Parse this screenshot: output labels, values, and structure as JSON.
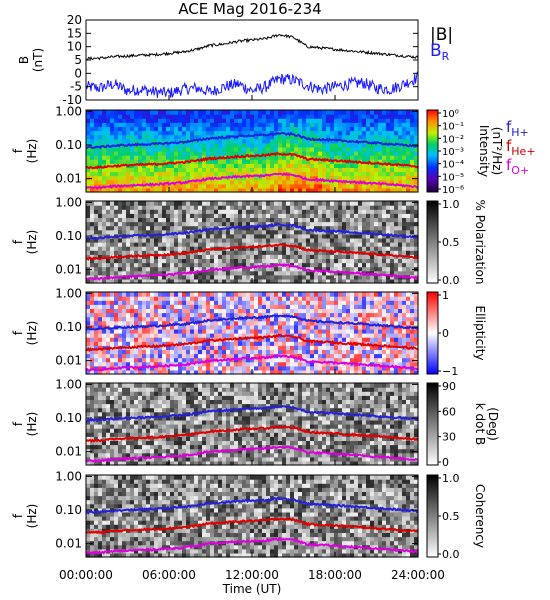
{
  "title": "ACE Mag 2016-234",
  "chart_data": [
    {
      "type": "line",
      "panel": "field",
      "ylabel": "B",
      "yunit": "(nT)",
      "ylim": [
        -10,
        20
      ],
      "yticks": [
        "-10",
        "-5",
        "0",
        "5",
        "10",
        "15",
        "20"
      ],
      "legend": {
        "b_total": "|B|",
        "b_radial_main": "B",
        "b_radial_sub": "R"
      },
      "colors": {
        "b_total": "#000000",
        "b_radial": "#1a1aff"
      },
      "x_hours": [
        0,
        1,
        2,
        3,
        4,
        5,
        6,
        7,
        8,
        9,
        10,
        11,
        12,
        13,
        14,
        15,
        16,
        17,
        18,
        19,
        20,
        21,
        22,
        23,
        24
      ],
      "series": [
        {
          "name": "|B|",
          "values": [
            5.5,
            5.7,
            6.2,
            6.5,
            6.8,
            7.0,
            7.5,
            8.0,
            9.0,
            10.5,
            11.0,
            12.0,
            12.5,
            13.0,
            14.5,
            13.5,
            10.0,
            9.5,
            9.0,
            8.5,
            8.0,
            7.5,
            7.0,
            6.5,
            6.0
          ]
        },
        {
          "name": "B_R",
          "values": [
            -5.0,
            -5.5,
            -4.0,
            -6.5,
            -6.0,
            -7.0,
            -7.5,
            -6.0,
            -5.5,
            -7.0,
            -5.0,
            -4.0,
            -6.5,
            -5.0,
            -2.0,
            -2.5,
            -4.5,
            -6.0,
            -5.0,
            -4.0,
            -3.5,
            -5.5,
            -6.0,
            -4.0,
            -1.5
          ]
        }
      ]
    },
    {
      "type": "heatmap",
      "panel": "power",
      "ylabel": "f",
      "yunit": "(Hz)",
      "cbar_label": "Intensity",
      "cbar_unit": "(nT²/Hz)",
      "cbar_ticks": [
        "10⁰",
        "10⁻¹",
        "10⁻²",
        "10⁻³",
        "10⁻⁴",
        "10⁻⁵",
        "10⁻⁶"
      ],
      "cbar_palette": "rainbow",
      "legend": [
        {
          "main": "f",
          "sub": "H+",
          "color": "#2222cc"
        },
        {
          "main": "f",
          "sub": "He+",
          "color": "#cc0000"
        },
        {
          "main": "f",
          "sub": "O+",
          "color": "#dd00dd"
        }
      ]
    },
    {
      "type": "heatmap",
      "panel": "polarization",
      "ylabel": "f",
      "yunit": "(Hz)",
      "cbar_label": "% Polarization",
      "cbar_ticks": [
        "1.0",
        "0.5",
        "0.0"
      ],
      "cbar_palette": "gray"
    },
    {
      "type": "heatmap",
      "panel": "ellipticity",
      "ylabel": "f",
      "yunit": "(Hz)",
      "cbar_label": "Ellipticity",
      "cbar_ticks": [
        "1",
        "0",
        "−1"
      ],
      "cbar_palette": "bwr"
    },
    {
      "type": "heatmap",
      "panel": "kdotb",
      "ylabel": "f",
      "yunit": "(Hz)",
      "cbar_label": "k dot B",
      "cbar_unit": "(Deg)",
      "cbar_ticks": [
        "90",
        "60",
        "30",
        "0"
      ],
      "cbar_palette": "gray"
    },
    {
      "type": "heatmap",
      "panel": "coherency",
      "ylabel": "f",
      "yunit": "(Hz)",
      "cbar_label": "Coherency",
      "cbar_ticks": [
        "1.0",
        "0.5",
        "0.0"
      ],
      "cbar_palette": "gray"
    }
  ],
  "frequency_axis": {
    "scale": "log",
    "ylim": [
      0.004,
      1.1
    ],
    "ticks": [
      {
        "v": 1.0,
        "t": "1.00"
      },
      {
        "v": 0.1,
        "t": "0.10"
      },
      {
        "v": 0.01,
        "t": "0.01"
      }
    ]
  },
  "gyrofrequency_curves": {
    "x_hours": [
      0,
      1,
      2,
      3,
      4,
      5,
      6,
      7,
      8,
      9,
      10,
      11,
      12,
      13,
      14,
      15,
      16,
      17,
      18,
      19,
      20,
      21,
      22,
      23,
      24
    ],
    "fH": [
      0.085,
      0.087,
      0.095,
      0.099,
      0.104,
      0.107,
      0.114,
      0.122,
      0.137,
      0.16,
      0.168,
      0.183,
      0.191,
      0.198,
      0.221,
      0.206,
      0.153,
      0.145,
      0.137,
      0.13,
      0.122,
      0.114,
      0.107,
      0.099,
      0.092
    ],
    "fHe": [
      0.0213,
      0.0217,
      0.0238,
      0.0248,
      0.026,
      0.0268,
      0.0286,
      0.0305,
      0.0343,
      0.04,
      0.0419,
      0.0458,
      0.0477,
      0.0496,
      0.0553,
      0.0515,
      0.0381,
      0.0362,
      0.0343,
      0.0324,
      0.0305,
      0.0286,
      0.0267,
      0.0248,
      0.0229
    ],
    "fO": [
      0.0053,
      0.0054,
      0.0059,
      0.0062,
      0.0065,
      0.0067,
      0.0071,
      0.0076,
      0.0086,
      0.01,
      0.0105,
      0.0114,
      0.0119,
      0.0124,
      0.0138,
      0.0129,
      0.0095,
      0.0091,
      0.0086,
      0.0081,
      0.0076,
      0.0071,
      0.0067,
      0.0062,
      0.0057
    ]
  },
  "x_axis": {
    "label": "Time (UT)",
    "xlim_hours": [
      0,
      24
    ],
    "ticks": [
      {
        "h": 0,
        "t": "00:00:00"
      },
      {
        "h": 6,
        "t": "06:00:00"
      },
      {
        "h": 12,
        "t": "12:00:00"
      },
      {
        "h": 18,
        "t": "18:00:00"
      },
      {
        "h": 24,
        "t": "24:00:00"
      }
    ]
  }
}
